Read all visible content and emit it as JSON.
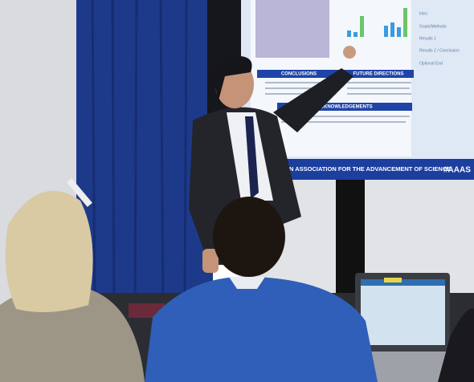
{
  "screen": {
    "sections": [
      "CONCLUSIONS",
      "FUTURE DIRECTIONS",
      "ACKNOWLEDGEMENTS"
    ],
    "sidebar": [
      "Intro",
      "Goals/Methods",
      "Results 1",
      "Results 2 / Conclusion",
      "Optional End"
    ],
    "banner": "N ASSOCIATION FOR THE ADVANCEMENT OF SCIENCE",
    "hashtag": "#AAAS"
  }
}
